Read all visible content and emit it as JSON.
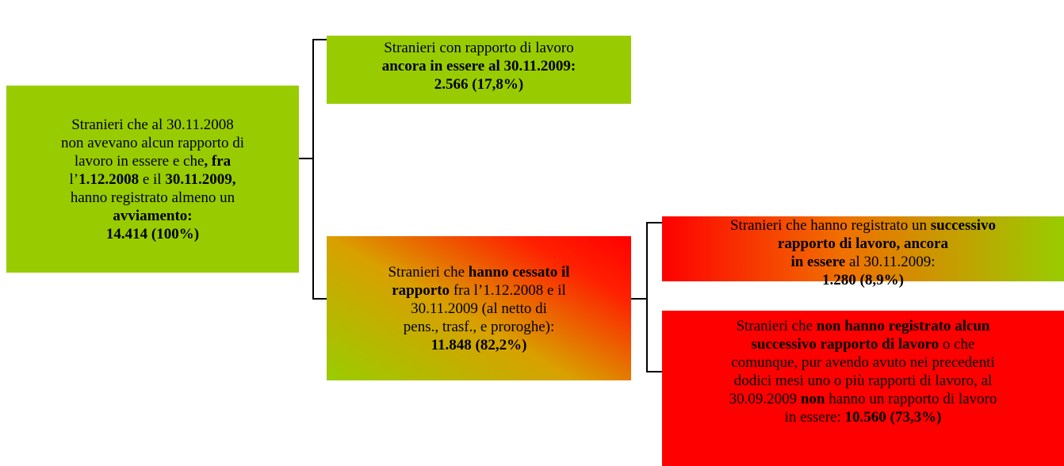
{
  "nodes": [
    {
      "lines": [
        [
          {
            "t": "Stranieri che al 30.11.2008"
          }
        ],
        [
          {
            "t": "non avevano alcun rapporto di"
          }
        ],
        [
          {
            "t": "lavoro in essere e che"
          },
          {
            "t": ", fra",
            "b": true
          }
        ],
        [
          {
            "t": "l’"
          },
          {
            "t": "1.12.2008",
            "b": true
          },
          {
            "t": " e il "
          },
          {
            "t": "30.11.2009,",
            "b": true
          }
        ],
        [
          {
            "t": "hanno registrato almeno un"
          }
        ],
        [
          {
            "t": "avviamento:",
            "b": true
          }
        ],
        [
          {
            "t": "14.414 (100%)",
            "b": true
          }
        ]
      ]
    },
    {
      "lines": [
        [
          {
            "t": "Stranieri con rapporto di lavoro"
          }
        ],
        [
          {
            "t": "ancora in essere al 30.11.2009:",
            "b": true
          }
        ],
        [
          {
            "t": "2.566 (17,8%)",
            "b": true
          }
        ]
      ]
    },
    {
      "lines": [
        [
          {
            "t": "Stranieri che "
          },
          {
            "t": "hanno cessato il",
            "b": true
          }
        ],
        [
          {
            "t": "rapporto",
            "b": true
          },
          {
            "t": " fra l’1.12.2008 e il"
          }
        ],
        [
          {
            "t": "30.11.2009 (al netto di"
          }
        ],
        [
          {
            "t": "pens., trasf., e proroghe):"
          }
        ],
        [
          {
            "t": "11.848 (82,2%)",
            "b": true
          }
        ]
      ]
    },
    {
      "lines": [
        [
          {
            "t": "Stranieri che hanno registrato un "
          },
          {
            "t": "successivo",
            "b": true
          }
        ],
        [
          {
            "t": "rapporto di lavoro, ancora",
            "b": true
          }
        ],
        [
          {
            "t": "in essere",
            "b": true
          },
          {
            "t": " al 30.11.2009:"
          }
        ],
        [
          {
            "t": "1.280 (8,9%)",
            "b": true
          }
        ]
      ]
    },
    {
      "lines": [
        [
          {
            "t": "Stranieri che "
          },
          {
            "t": "non hanno registrato alcun",
            "b": true
          }
        ],
        [
          {
            "t": "successivo rapporto di lavoro",
            "b": true
          },
          {
            "t": " o che"
          }
        ],
        [
          {
            "t": "comunque, pur avendo avuto nei precedenti"
          }
        ],
        [
          {
            "t": "dodici mesi uno o più rapporti di lavoro, al"
          }
        ],
        [
          {
            "t": "30.09.2009 "
          },
          {
            "t": "non",
            "b": true
          },
          {
            "t": " hanno un rapporto di lavoro"
          }
        ],
        [
          {
            "t": "in essere: "
          },
          {
            "t": "10.560 (73,3%)",
            "b": true
          }
        ]
      ]
    }
  ]
}
